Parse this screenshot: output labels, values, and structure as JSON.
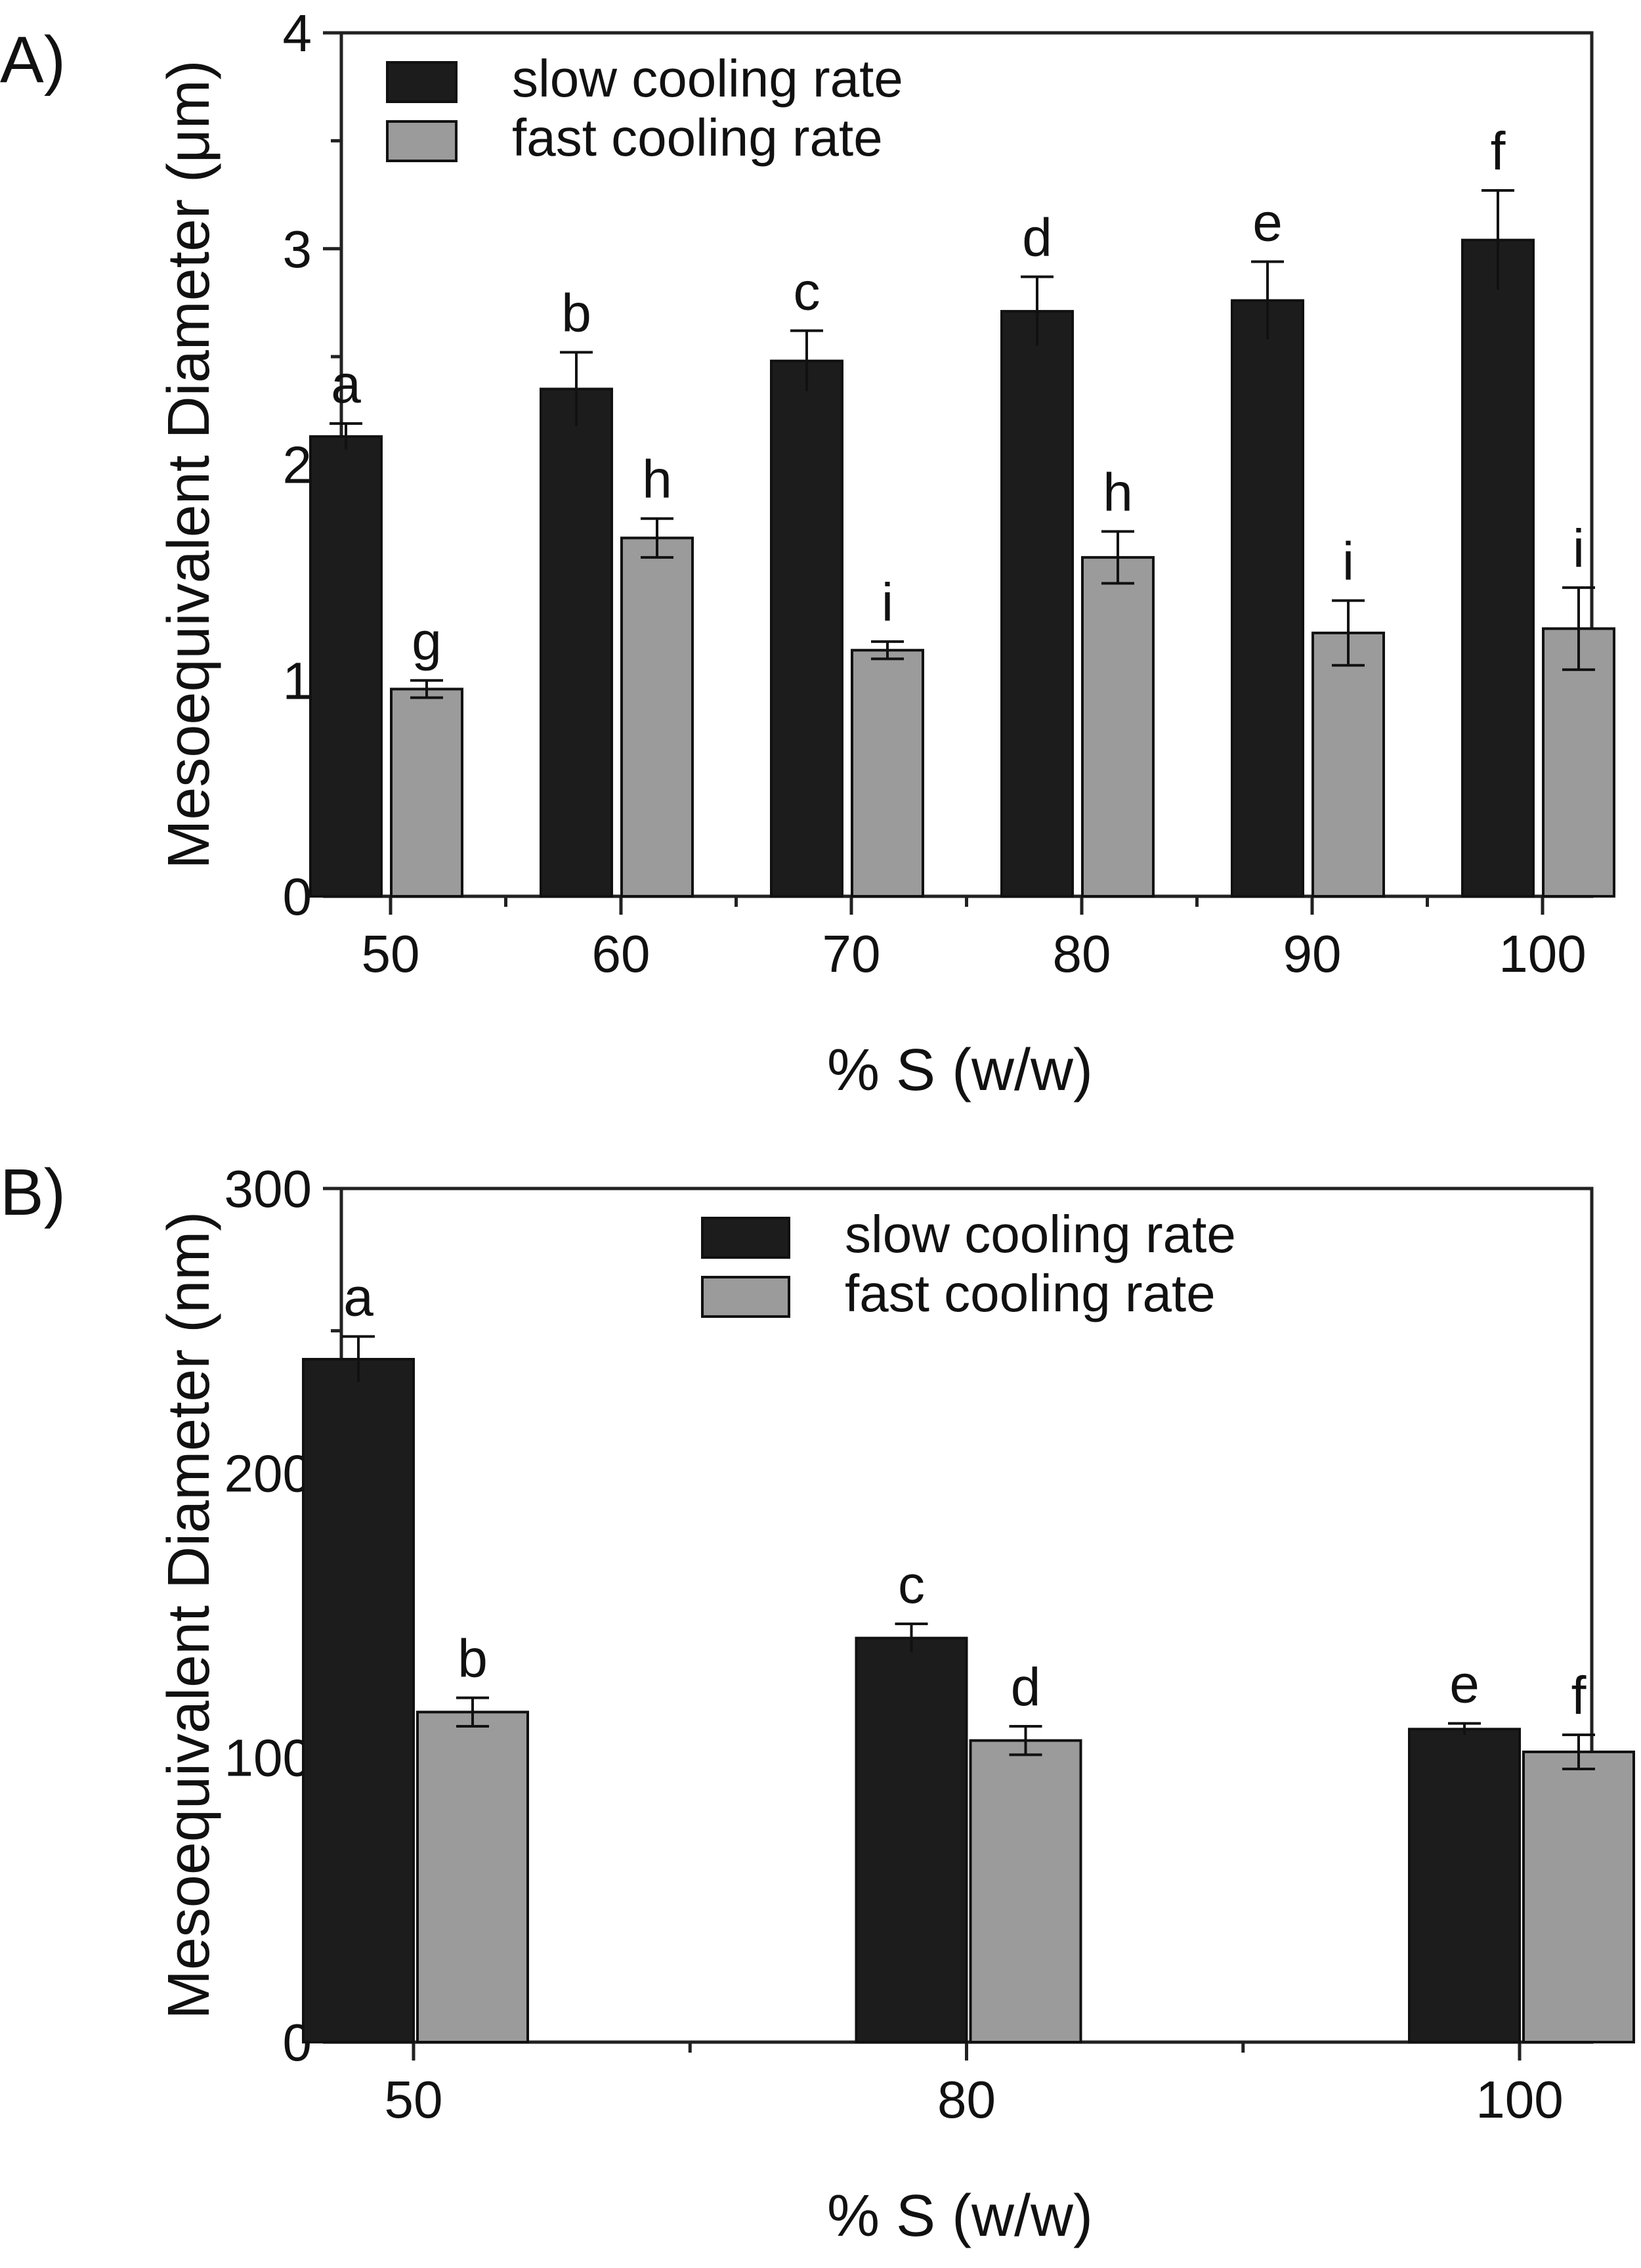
{
  "panels": [
    {
      "label": "A)"
    },
    {
      "label": "B)"
    }
  ],
  "colors": {
    "slow": "#1c1c1c",
    "fast": "#9b9b9b",
    "axis": "#222222"
  },
  "chart_data": [
    {
      "type": "bar",
      "panel": "A)",
      "xlabel": "% S (w/w)",
      "ylabel": "Mesoequivalent Diameter (μm)",
      "ylim": [
        0,
        4
      ],
      "yticks": [
        "0",
        "1",
        "2",
        "3",
        "4"
      ],
      "categories": [
        "50",
        "60",
        "70",
        "80",
        "90",
        "100"
      ],
      "legend_position": "top-left",
      "series": [
        {
          "name": "slow cooling rate",
          "values": [
            2.13,
            2.35,
            2.48,
            2.71,
            2.76,
            3.04
          ],
          "errors": [
            0.06,
            0.17,
            0.14,
            0.16,
            0.18,
            0.23
          ],
          "letters": [
            "a",
            "b",
            "c",
            "d",
            "e",
            "f"
          ]
        },
        {
          "name": "fast cooling rate",
          "values": [
            0.96,
            1.66,
            1.14,
            1.57,
            1.22,
            1.24
          ],
          "errors": [
            0.04,
            0.09,
            0.04,
            0.12,
            0.15,
            0.19
          ],
          "letters": [
            "g",
            "h",
            "i",
            "h",
            "i",
            "i"
          ]
        }
      ]
    },
    {
      "type": "bar",
      "panel": "B)",
      "xlabel": "% S (w/w)",
      "ylabel": "Mesoequivalent Diameter (nm)",
      "ylim": [
        0,
        300
      ],
      "yticks": [
        "0",
        "100",
        "200",
        "300"
      ],
      "categories": [
        "50",
        "80",
        "100"
      ],
      "legend_position": "top-center",
      "series": [
        {
          "name": "slow cooling rate",
          "values": [
            240,
            142,
            110
          ],
          "errors": [
            8,
            5,
            2
          ],
          "letters": [
            "a",
            "c",
            "e"
          ]
        },
        {
          "name": "fast cooling rate",
          "values": [
            116,
            106,
            102
          ],
          "errors": [
            5,
            5,
            6
          ],
          "letters": [
            "b",
            "d",
            "f"
          ]
        }
      ]
    }
  ]
}
